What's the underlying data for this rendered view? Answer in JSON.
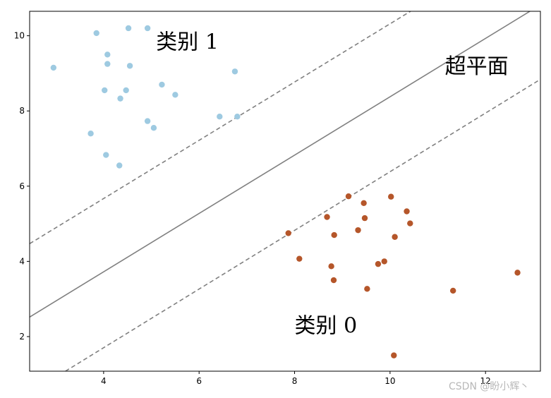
{
  "chart_data": {
    "type": "scatter",
    "xlim": [
      2.45,
      13.15
    ],
    "ylim": [
      1.08,
      10.65
    ],
    "xticks": [
      4,
      6,
      8,
      10,
      12
    ],
    "yticks": [
      2,
      4,
      6,
      8,
      10
    ],
    "grid": false,
    "series": [
      {
        "name": "",
        "color": "#9ecae1",
        "points": [
          [
            2.95,
            9.15
          ],
          [
            3.85,
            10.07
          ],
          [
            4.52,
            10.2
          ],
          [
            4.92,
            10.2
          ],
          [
            4.08,
            9.5
          ],
          [
            4.08,
            9.25
          ],
          [
            4.55,
            9.2
          ],
          [
            6.75,
            9.05
          ],
          [
            5.22,
            8.7
          ],
          [
            4.02,
            8.55
          ],
          [
            4.47,
            8.55
          ],
          [
            5.5,
            8.43
          ],
          [
            4.35,
            8.33
          ],
          [
            6.43,
            7.85
          ],
          [
            6.8,
            7.85
          ],
          [
            4.92,
            7.73
          ],
          [
            5.05,
            7.55
          ],
          [
            3.73,
            7.4
          ],
          [
            4.05,
            6.83
          ],
          [
            4.33,
            6.55
          ]
        ]
      },
      {
        "name": "",
        "color": "#b5562a",
        "points": [
          [
            9.13,
            5.73
          ],
          [
            10.02,
            5.72
          ],
          [
            9.45,
            5.55
          ],
          [
            10.35,
            5.33
          ],
          [
            8.68,
            5.18
          ],
          [
            9.47,
            5.15
          ],
          [
            10.42,
            5.01
          ],
          [
            9.33,
            4.83
          ],
          [
            7.87,
            4.75
          ],
          [
            8.83,
            4.7
          ],
          [
            10.1,
            4.65
          ],
          [
            8.1,
            4.07
          ],
          [
            9.88,
            4.0
          ],
          [
            9.75,
            3.93
          ],
          [
            8.77,
            3.87
          ],
          [
            12.67,
            3.7
          ],
          [
            8.82,
            3.5
          ],
          [
            9.52,
            3.27
          ],
          [
            11.32,
            3.22
          ],
          [
            10.08,
            1.5
          ]
        ]
      }
    ],
    "lines": [
      {
        "kind": "solid",
        "color": "#808080",
        "points": [
          [
            2.45,
            2.52
          ],
          [
            12.93,
            10.65
          ]
        ]
      },
      {
        "kind": "dashed",
        "color": "#808080",
        "points": [
          [
            2.45,
            4.47
          ],
          [
            10.43,
            10.65
          ]
        ]
      },
      {
        "kind": "dashed",
        "color": "#808080",
        "points": [
          [
            3.2,
            1.08
          ],
          [
            13.15,
            8.84
          ]
        ]
      }
    ],
    "annotations": [
      {
        "text": "类别 1",
        "x": 5.1,
        "y": 9.65
      },
      {
        "text": "超平面",
        "x": 11.15,
        "y": 9.0
      },
      {
        "text": "类别 0",
        "x": 8.0,
        "y": 2.1
      }
    ]
  },
  "watermark": "CSDN @盼小辉丶"
}
